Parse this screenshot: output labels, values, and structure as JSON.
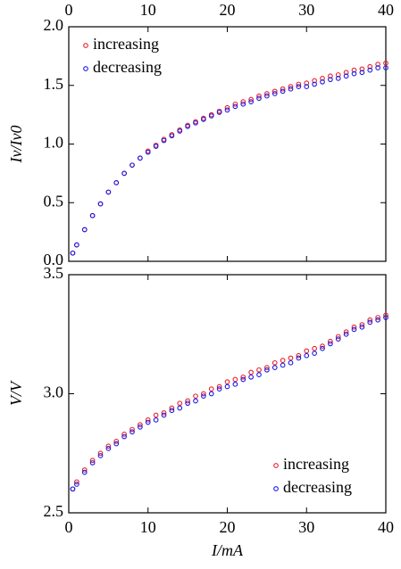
{
  "chart_data": [
    {
      "type": "scatter",
      "ylabel": "Iv/Iv0",
      "x_tick_labels_side": "top",
      "legend": "upper left",
      "x": [
        0.5,
        1,
        2,
        3,
        4,
        5,
        6,
        7,
        8,
        9,
        10,
        11,
        12,
        13,
        14,
        15,
        16,
        17,
        18,
        19,
        20,
        21,
        22,
        23,
        24,
        25,
        26,
        27,
        28,
        29,
        30,
        31,
        32,
        33,
        34,
        35,
        36,
        37,
        38,
        39,
        40
      ],
      "series": [
        {
          "name": "increasing",
          "color": "#e8202a",
          "values": [
            0.07,
            0.14,
            0.27,
            0.39,
            0.49,
            0.59,
            0.67,
            0.75,
            0.82,
            0.88,
            0.94,
            0.99,
            1.04,
            1.08,
            1.12,
            1.16,
            1.19,
            1.22,
            1.25,
            1.28,
            1.31,
            1.34,
            1.36,
            1.38,
            1.41,
            1.43,
            1.45,
            1.47,
            1.49,
            1.51,
            1.52,
            1.54,
            1.56,
            1.58,
            1.59,
            1.61,
            1.63,
            1.64,
            1.66,
            1.68,
            1.69
          ]
        },
        {
          "name": "decreasing",
          "color": "#1a1ae6",
          "values": [
            0.07,
            0.14,
            0.27,
            0.39,
            0.49,
            0.59,
            0.67,
            0.75,
            0.82,
            0.88,
            0.93,
            0.98,
            1.03,
            1.07,
            1.11,
            1.15,
            1.18,
            1.21,
            1.24,
            1.27,
            1.29,
            1.32,
            1.34,
            1.36,
            1.39,
            1.41,
            1.43,
            1.45,
            1.47,
            1.49,
            1.49,
            1.51,
            1.53,
            1.55,
            1.56,
            1.58,
            1.6,
            1.61,
            1.63,
            1.65,
            1.65
          ]
        }
      ],
      "xlim": [
        0,
        40
      ],
      "xticks": [
        0,
        10,
        20,
        30,
        40
      ],
      "ylim": [
        0,
        2
      ],
      "yticks": [
        {
          "value": 0,
          "label": "0.0"
        },
        {
          "value": 0.5,
          "label": "0.5"
        },
        {
          "value": 1,
          "label": "1.0"
        },
        {
          "value": 1.5,
          "label": "1.5"
        },
        {
          "value": 2,
          "label": "2.0"
        }
      ]
    },
    {
      "type": "scatter",
      "xlabel": "I/mA",
      "ylabel": "V/V",
      "x_tick_labels_side": "bottom",
      "legend": "lower right",
      "x": [
        0.5,
        1,
        2,
        3,
        4,
        5,
        6,
        7,
        8,
        9,
        10,
        11,
        12,
        13,
        14,
        15,
        16,
        17,
        18,
        19,
        20,
        21,
        22,
        23,
        24,
        25,
        26,
        27,
        28,
        29,
        30,
        31,
        32,
        33,
        34,
        35,
        36,
        37,
        38,
        39,
        40
      ],
      "series": [
        {
          "name": "increasing",
          "color": "#e8202a",
          "values": [
            2.6,
            2.63,
            2.68,
            2.72,
            2.75,
            2.78,
            2.8,
            2.83,
            2.85,
            2.87,
            2.89,
            2.91,
            2.92,
            2.94,
            2.96,
            2.97,
            2.99,
            3.0,
            3.02,
            3.03,
            3.05,
            3.06,
            3.07,
            3.09,
            3.1,
            3.11,
            3.13,
            3.14,
            3.15,
            3.16,
            3.18,
            3.19,
            3.2,
            3.22,
            3.24,
            3.26,
            3.28,
            3.29,
            3.31,
            3.32,
            3.33
          ]
        },
        {
          "name": "decreasing",
          "color": "#1a1ae6",
          "values": [
            2.6,
            2.62,
            2.67,
            2.71,
            2.74,
            2.77,
            2.79,
            2.82,
            2.84,
            2.86,
            2.88,
            2.89,
            2.91,
            2.93,
            2.94,
            2.96,
            2.97,
            2.99,
            3.0,
            3.02,
            3.03,
            3.04,
            3.06,
            3.07,
            3.08,
            3.1,
            3.11,
            3.12,
            3.13,
            3.15,
            3.16,
            3.17,
            3.19,
            3.21,
            3.23,
            3.25,
            3.27,
            3.28,
            3.3,
            3.31,
            3.32
          ]
        }
      ],
      "xlim": [
        0,
        40
      ],
      "xticks": [
        0,
        10,
        20,
        30,
        40
      ],
      "ylim": [
        2.5,
        3.5
      ],
      "yticks": [
        {
          "value": 2.5,
          "label": "2.5"
        },
        {
          "value": 3,
          "label": "3.0"
        },
        {
          "value": 3.5,
          "label": "3.5"
        }
      ]
    }
  ]
}
